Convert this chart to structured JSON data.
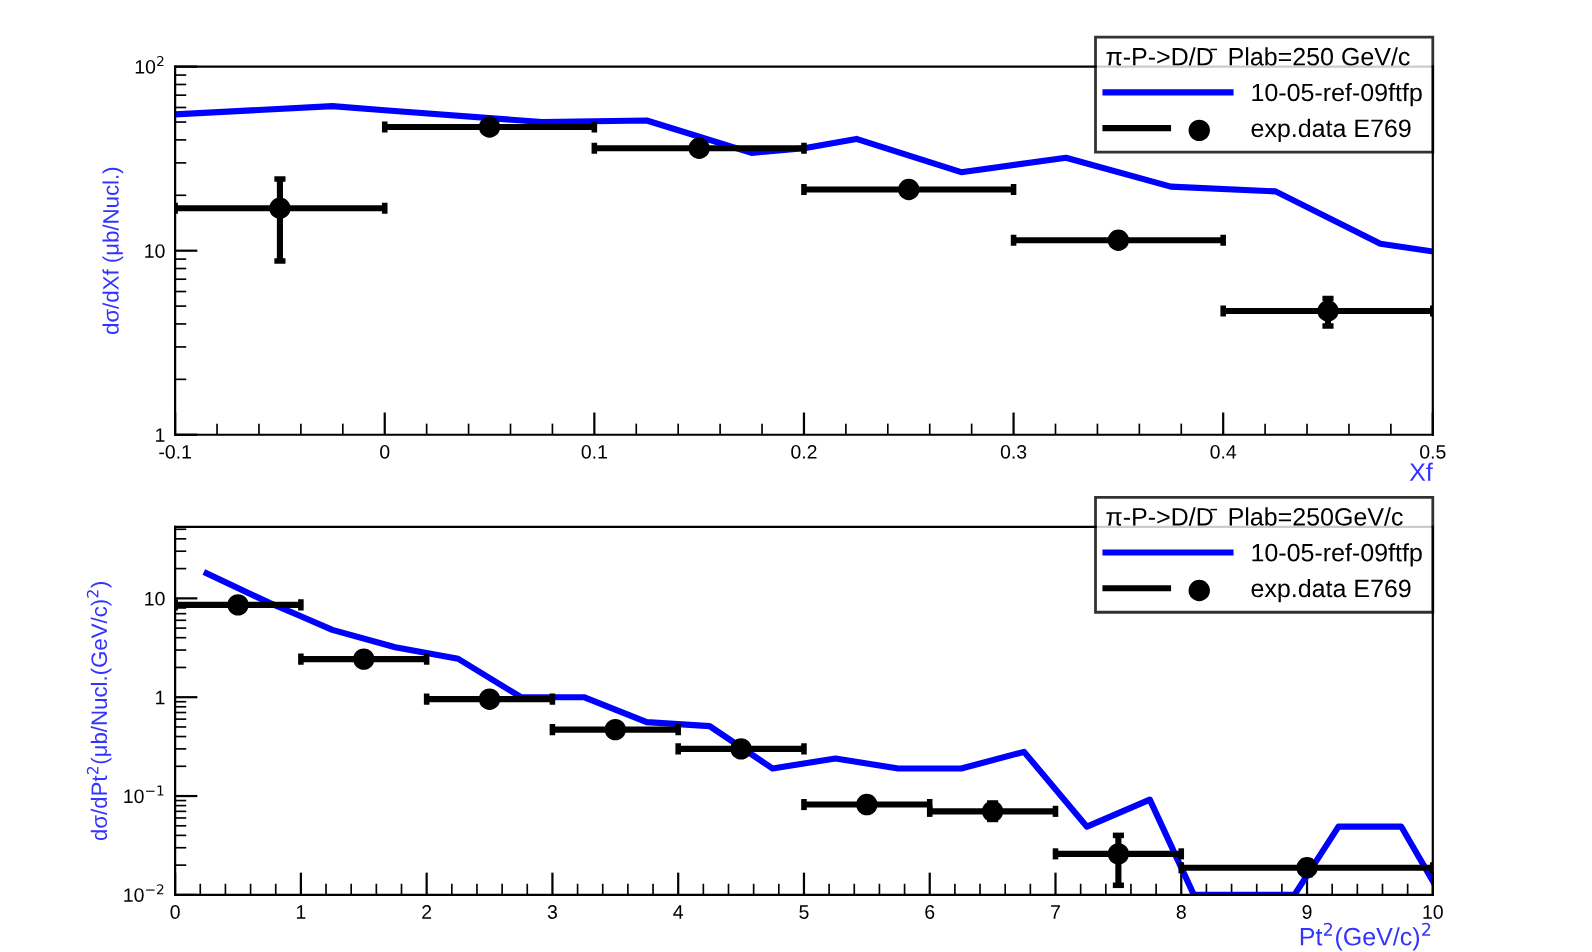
{
  "chart_data": [
    {
      "type": "line",
      "ylabel": "dσ/dXf (μb/Nucl.)",
      "xlabel": "Xf",
      "legend_title": "π-P->D/D̄  Plab=250 GeV/c",
      "log": "y",
      "legend": "top right",
      "grid": false,
      "xlim": [
        -0.1,
        0.5
      ],
      "xticks": [
        -0.1,
        0,
        0.1,
        0.2,
        0.3,
        0.4,
        0.5
      ],
      "ylim": [
        1,
        100
      ],
      "yticks": [
        1,
        10,
        {
          "value": 100,
          "label": "10$^{2}$"
        }
      ],
      "series": [
        {
          "name": "10-05-ref-09ftfp",
          "color": "#0000ff",
          "marker": "none",
          "x": [
            -0.1,
            -0.025,
            0,
            0.075,
            0.125,
            0.175,
            0.2,
            0.225,
            0.275,
            0.325,
            0.375,
            0.425,
            0.475,
            0.5
          ],
          "values": [
            55,
            61,
            58,
            50,
            51,
            34,
            36,
            40.5,
            26.7,
            32,
            22.3,
            21,
            10.9,
            9.9
          ]
        },
        {
          "name": "exp.data E769",
          "type": "scatter",
          "color": "#000000",
          "marker": "circle",
          "x": [
            -0.05,
            0.05,
            0.15,
            0.25,
            0.35,
            0.45
          ],
          "values": [
            17,
            47,
            36,
            21.5,
            11.4,
            4.7
          ],
          "xerrors": [
            0.05,
            0.05,
            0.05,
            0.05,
            0.05,
            0.05
          ],
          "errors": [
            [
              8.8,
              24.5
            ],
            null,
            null,
            null,
            null,
            [
              3.9,
              5.5
            ]
          ]
        }
      ]
    },
    {
      "type": "line",
      "ylabel": "dσ/dPt$^{2}$(μb/Nucl.(GeV/c)$^{2}$)",
      "xlabel": "Pt$^{2}$(GeV/c)$^{2}$",
      "legend_title": "π-P->D/D̄  Plab=250GeV/c",
      "log": "y",
      "legend": "top right",
      "grid": false,
      "xlim": [
        0,
        10
      ],
      "xticks": [
        0,
        1,
        2,
        3,
        4,
        5,
        6,
        7,
        8,
        9,
        10
      ],
      "ylim": [
        0.01,
        53
      ],
      "yticks": [
        {
          "value": 0.01,
          "label": "10$^{−2}$"
        },
        {
          "value": 0.1,
          "label": "10$^{−1}$"
        },
        1,
        10
      ],
      "series": [
        {
          "name": "10-05-ref-09ftfp",
          "color": "#0000ff",
          "marker": "none",
          "x": [
            0.25,
            0.75,
            1,
            1.25,
            1.75,
            2.25,
            2.75,
            3.25,
            3.75,
            4.25,
            4.75,
            5.25,
            5.75,
            6.25,
            6.75,
            7.25,
            7.75,
            8.1,
            8.9,
            9.25,
            9.75,
            10
          ],
          "values": [
            17.9,
            9,
            6.6,
            4.8,
            3.2,
            2.45,
            1.0,
            1.0,
            0.56,
            0.51,
            0.19,
            0.24,
            0.19,
            0.19,
            0.28,
            0.049,
            0.092,
            0.01,
            0.01,
            0.049,
            0.049,
            0.0138
          ]
        },
        {
          "name": "exp.data E769",
          "type": "scatter",
          "color": "#000000",
          "marker": "circle",
          "x": [
            0.5,
            1.5,
            2.5,
            3.5,
            4.5,
            5.5,
            6.5,
            7.5,
            9
          ],
          "values": [
            8.6,
            2.43,
            0.955,
            0.47,
            0.3,
            0.082,
            0.07,
            0.026,
            0.0188
          ],
          "xerrors": [
            0.5,
            0.5,
            0.5,
            0.5,
            0.5,
            0.5,
            0.5,
            0.5,
            1
          ],
          "errors": [
            null,
            null,
            null,
            null,
            null,
            [
              0.07,
              0.095
            ],
            [
              0.058,
              0.085
            ],
            [
              0.0125,
              0.04
            ],
            [
              0.016,
              0.022
            ]
          ]
        }
      ]
    }
  ]
}
